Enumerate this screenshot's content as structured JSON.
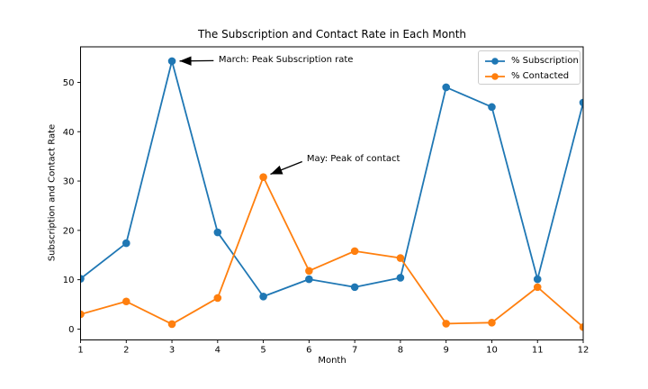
{
  "chart_data": {
    "type": "line",
    "title": "The Subscription and Contact Rate in Each Month",
    "xlabel": "Month",
    "ylabel": "Subscription and Contact Rate",
    "x": [
      1,
      2,
      3,
      4,
      5,
      6,
      7,
      8,
      9,
      10,
      11,
      12
    ],
    "series": [
      {
        "name": "% Subscription",
        "color": "#1f77b4",
        "marker": "o",
        "values": [
          10.2,
          17.4,
          54.3,
          19.6,
          6.6,
          10.1,
          8.5,
          10.4,
          49.0,
          45.0,
          10.1,
          45.9
        ]
      },
      {
        "name": "% Contacted",
        "color": "#ff7f0e",
        "marker": "o",
        "values": [
          3.0,
          5.6,
          1.0,
          6.3,
          30.8,
          11.8,
          15.8,
          14.4,
          1.1,
          1.3,
          8.5,
          0.4
        ]
      }
    ],
    "xticks": [
      1,
      2,
      3,
      4,
      5,
      6,
      7,
      8,
      9,
      10,
      11,
      12
    ],
    "yticks": [
      0,
      10,
      20,
      30,
      40,
      50
    ],
    "xlim": [
      1,
      12
    ],
    "ylim": [
      -2.2,
      57.2
    ],
    "grid": false,
    "legend": {
      "position": "upper right"
    },
    "annotations": [
      {
        "text": "March: Peak Subscription rate",
        "xy": [
          3,
          54.3
        ],
        "xytext": [
          4.02,
          54.4
        ]
      },
      {
        "text": "May: Peak of contact",
        "xy": [
          5,
          30.8
        ],
        "xytext": [
          5.95,
          34.3
        ]
      }
    ],
    "axis_color": "#000000",
    "background": "#ffffff"
  }
}
